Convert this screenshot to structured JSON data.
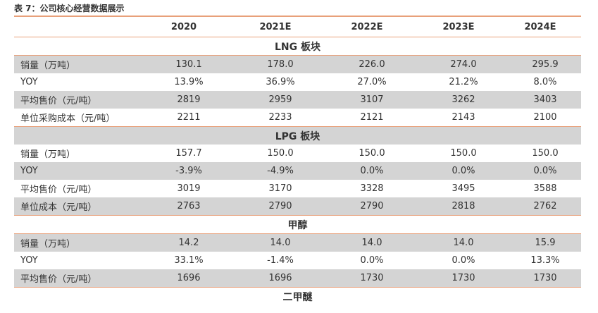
{
  "caption": "表 7：公司核心经营数据展示",
  "columns": [
    "2020",
    "2021E",
    "2022E",
    "2023E",
    "2024E"
  ],
  "sections": [
    {
      "title": "LNG 板块",
      "rows": [
        {
          "label": "销量（万吨）",
          "values": [
            "130.1",
            "178.0",
            "226.0",
            "274.0",
            "295.9"
          ]
        },
        {
          "label": "YOY",
          "values": [
            "13.9%",
            "36.9%",
            "27.0%",
            "21.2%",
            "8.0%"
          ]
        },
        {
          "label": "平均售价（元/吨）",
          "values": [
            "2819",
            "2959",
            "3107",
            "3262",
            "3403"
          ]
        },
        {
          "label": "单位采购成本（元/吨）",
          "values": [
            "2211",
            "2233",
            "2121",
            "2143",
            "2100"
          ]
        }
      ]
    },
    {
      "title": "LPG 板块",
      "rows": [
        {
          "label": "销量（万吨）",
          "values": [
            "157.7",
            "150.0",
            "150.0",
            "150.0",
            "150.0"
          ]
        },
        {
          "label": "YOY",
          "values": [
            "-3.9%",
            "-4.9%",
            "0.0%",
            "0.0%",
            "0.0%"
          ]
        },
        {
          "label": "平均售价（元/吨）",
          "values": [
            "3019",
            "3170",
            "3328",
            "3495",
            "3588"
          ]
        },
        {
          "label": "单位成本（元/吨）",
          "values": [
            "2763",
            "2790",
            "2790",
            "2818",
            "2762"
          ]
        }
      ]
    },
    {
      "title": "甲醇",
      "rows": [
        {
          "label": "销量（万吨）",
          "values": [
            "14.2",
            "14.0",
            "14.0",
            "14.0",
            "15.9"
          ]
        },
        {
          "label": "YOY",
          "values": [
            "33.1%",
            "-1.4%",
            "0.0%",
            "0.0%",
            "13.3%"
          ]
        },
        {
          "label": "平均售价（元/吨）",
          "values": [
            "1696",
            "1696",
            "1730",
            "1730",
            "1730"
          ]
        }
      ]
    },
    {
      "title": "二甲醚",
      "rows": []
    }
  ]
}
